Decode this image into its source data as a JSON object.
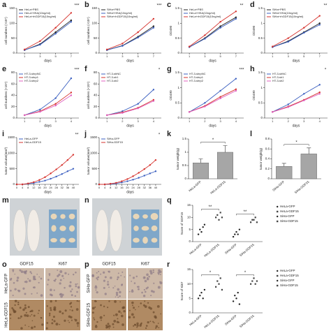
{
  "chart_data": [
    {
      "panel": "a",
      "type": "line",
      "xlabel": "days",
      "ylabel": "cell numbers (×10⁴)",
      "x": [
        1,
        3,
        5,
        7
      ],
      "xlim": [
        0,
        8
      ],
      "xticks": [
        1,
        3,
        5,
        7
      ],
      "ylim": [
        0,
        150
      ],
      "yticks": [
        0,
        50,
        100,
        150
      ],
      "annotation": "***",
      "series": [
        {
          "name": "HeLa+PBS",
          "color": "#222222",
          "values": [
            10,
            30,
            70,
            110
          ]
        },
        {
          "name": "HeLa+HSA(10ng/ml)",
          "color": "#3b5fc0",
          "values": [
            10,
            28,
            65,
            105
          ]
        },
        {
          "name": "HeLa+rhGDF15(10ng/ml)",
          "color": "#d6322d",
          "values": [
            12,
            40,
            85,
            135
          ]
        }
      ]
    },
    {
      "panel": "b",
      "type": "line",
      "xlabel": "days",
      "ylabel": "cell numbers (×10⁴)",
      "x": [
        1,
        3,
        5,
        7
      ],
      "xlim": [
        0,
        8
      ],
      "xticks": [
        1,
        3,
        5,
        7
      ],
      "ylim": [
        0,
        150
      ],
      "yticks": [
        0,
        50,
        100,
        150
      ],
      "annotation": "***",
      "series": [
        {
          "name": "SiHa+PBS",
          "color": "#222222",
          "values": [
            10,
            25,
            55,
            90
          ]
        },
        {
          "name": "SiHa+HSA(10ng/ml)",
          "color": "#3b5fc0",
          "values": [
            10,
            24,
            52,
            85
          ]
        },
        {
          "name": "SiHa+rhGDF15(10ng/ml)",
          "color": "#d6322d",
          "values": [
            12,
            32,
            70,
            115
          ]
        }
      ]
    },
    {
      "panel": "c",
      "type": "line",
      "xlabel": "days",
      "ylabel": "OD490",
      "x": [
        1,
        3,
        5,
        7
      ],
      "xlim": [
        0,
        8
      ],
      "xticks": [
        1,
        3,
        5,
        7
      ],
      "ylim": [
        0,
        1.5
      ],
      "yticks": [
        0,
        0.5,
        1,
        1.5
      ],
      "annotation": "**",
      "series": [
        {
          "name": "HeLa+PBS",
          "color": "#222222",
          "values": [
            0.2,
            0.5,
            0.9,
            1.2
          ]
        },
        {
          "name": "HeLa+HSA(10ng/ml)",
          "color": "#3b5fc0",
          "values": [
            0.2,
            0.48,
            0.85,
            1.15
          ]
        },
        {
          "name": "HeLa+rhGDF15(10ng/ml)",
          "color": "#d6322d",
          "values": [
            0.22,
            0.6,
            1.05,
            1.4
          ]
        }
      ]
    },
    {
      "panel": "d",
      "type": "line",
      "xlabel": "days",
      "ylabel": "OD490",
      "x": [
        1,
        3,
        5,
        7
      ],
      "xlim": [
        0,
        8
      ],
      "xticks": [
        1,
        3,
        5,
        7
      ],
      "ylim": [
        0,
        1.5
      ],
      "yticks": [
        0,
        0.5,
        1,
        1.5
      ],
      "annotation": "**",
      "series": [
        {
          "name": "SiHa+PBS",
          "color": "#222222",
          "values": [
            0.2,
            0.4,
            0.7,
            1.0
          ]
        },
        {
          "name": "SiHa+HSA(10ng/ml)",
          "color": "#3b5fc0",
          "values": [
            0.2,
            0.38,
            0.68,
            0.95
          ]
        },
        {
          "name": "SiHa+rhGDF15(10ng/ml)",
          "color": "#d6322d",
          "values": [
            0.22,
            0.5,
            0.85,
            1.25
          ]
        }
      ]
    },
    {
      "panel": "e",
      "type": "line",
      "xlabel": "days",
      "ylabel": "cell numbers (×10⁴)",
      "x": [
        1,
        2,
        3,
        4
      ],
      "xlim": [
        0.5,
        4.5
      ],
      "xticks": [
        1,
        2,
        3,
        4
      ],
      "ylim": [
        0,
        80
      ],
      "yticks": [
        0,
        20,
        40,
        60,
        80
      ],
      "annotation": "***",
      "series": [
        {
          "name": "HT-3-shrpNC",
          "color": "#3b5fc0",
          "values": [
            5,
            15,
            35,
            70
          ]
        },
        {
          "name": "HT-3-shrp1",
          "color": "#d6322d",
          "values": [
            5,
            12,
            25,
            45
          ]
        },
        {
          "name": "HT-3-shrp2",
          "color": "#e060c0",
          "values": [
            5,
            11,
            22,
            40
          ]
        }
      ]
    },
    {
      "panel": "f",
      "type": "line",
      "xlabel": "days",
      "ylabel": "cell numbers (×10⁴)",
      "x": [
        1,
        2,
        3,
        4
      ],
      "xlim": [
        0.5,
        4.5
      ],
      "xticks": [
        1,
        2,
        3,
        4
      ],
      "ylim": [
        0,
        80
      ],
      "yticks": [
        0,
        20,
        40,
        60,
        80
      ],
      "annotation": "*",
      "series": [
        {
          "name": "HT-3-shNC",
          "color": "#3b5fc0",
          "values": [
            5,
            12,
            25,
            50
          ]
        },
        {
          "name": "HT-3-sh1",
          "color": "#d6322d",
          "values": [
            5,
            10,
            18,
            32
          ]
        },
        {
          "name": "HT-3-sh2",
          "color": "#e060c0",
          "values": [
            5,
            9,
            17,
            30
          ]
        }
      ]
    },
    {
      "panel": "g",
      "type": "line",
      "xlabel": "days",
      "ylabel": "OD490",
      "x": [
        1,
        2,
        3,
        4
      ],
      "xlim": [
        0.5,
        4.5
      ],
      "xticks": [
        1,
        2,
        3,
        4
      ],
      "ylim": [
        0,
        1.5
      ],
      "yticks": [
        0,
        0.5,
        1,
        1.5
      ],
      "annotation": "***",
      "series": [
        {
          "name": "HT-3-shrpNC",
          "color": "#3b5fc0",
          "values": [
            0.2,
            0.5,
            0.9,
            1.3
          ]
        },
        {
          "name": "HT-3-shrp1",
          "color": "#d6322d",
          "values": [
            0.2,
            0.4,
            0.7,
            0.95
          ]
        },
        {
          "name": "HT-3-shrp2",
          "color": "#e060c0",
          "values": [
            0.2,
            0.38,
            0.65,
            0.9
          ]
        }
      ]
    },
    {
      "panel": "h",
      "type": "line",
      "xlabel": "days",
      "ylabel": "OD490",
      "x": [
        1,
        2,
        3,
        4
      ],
      "xlim": [
        0.5,
        4.5
      ],
      "xticks": [
        1,
        2,
        3,
        4
      ],
      "ylim": [
        0,
        1.5
      ],
      "yticks": [
        0,
        0.5,
        1,
        1.5
      ],
      "annotation": "*",
      "series": [
        {
          "name": "HT-3-shNC",
          "color": "#3b5fc0",
          "values": [
            0.2,
            0.45,
            0.8,
            1.1
          ]
        },
        {
          "name": "HT-3-sh1",
          "color": "#d6322d",
          "values": [
            0.2,
            0.38,
            0.6,
            0.85
          ]
        },
        {
          "name": "HT-3-sh2",
          "color": "#e060c0",
          "values": [
            0.2,
            0.36,
            0.58,
            0.8
          ]
        }
      ]
    },
    {
      "panel": "i",
      "type": "line",
      "xlabel": "days",
      "ylabel": "tumor volume(mm³)",
      "x": [
        0,
        4,
        8,
        12,
        16,
        20,
        24,
        28,
        32,
        36,
        40
      ],
      "xlim": [
        0,
        44
      ],
      "xticks": [
        0,
        4,
        8,
        12,
        16,
        20,
        24,
        28,
        32,
        36,
        40
      ],
      "ylim": [
        0,
        1500
      ],
      "yticks": [
        0,
        500,
        1000,
        1500
      ],
      "annotation": "**",
      "series": [
        {
          "name": "HeLa-GFP",
          "color": "#3b5fc0",
          "values": [
            0,
            0,
            20,
            40,
            80,
            120,
            180,
            250,
            330,
            420,
            500
          ]
        },
        {
          "name": "HeLa-GDF15",
          "color": "#d6322d",
          "values": [
            0,
            0,
            30,
            70,
            140,
            230,
            350,
            480,
            620,
            780,
            950
          ]
        }
      ]
    },
    {
      "panel": "j",
      "type": "line",
      "xlabel": "days",
      "ylabel": "tumor volume(mm³)",
      "x": [
        0,
        4,
        8,
        12,
        16,
        20,
        24,
        28,
        32,
        36,
        40
      ],
      "xlim": [
        0,
        44
      ],
      "xticks": [
        0,
        4,
        8,
        12,
        16,
        20,
        24,
        28,
        32,
        36,
        40
      ],
      "ylim": [
        0,
        1500
      ],
      "yticks": [
        0,
        500,
        1000,
        1500
      ],
      "annotation": "*",
      "series": [
        {
          "name": "SiHa-GFP",
          "color": "#3b5fc0",
          "values": [
            0,
            0,
            10,
            30,
            60,
            100,
            150,
            210,
            280,
            350,
            420
          ]
        },
        {
          "name": "SiHa-GDF15",
          "color": "#d6322d",
          "values": [
            0,
            0,
            20,
            50,
            100,
            170,
            260,
            370,
            490,
            620,
            780
          ]
        }
      ]
    },
    {
      "panel": "k",
      "type": "bar",
      "ylabel": "tumor weight(g)",
      "categories": [
        "HeLa-GFP",
        "HeLa-GDF15"
      ],
      "values": [
        0.6,
        1.0
      ],
      "errors": [
        0.15,
        0.25
      ],
      "color": "#a6a6a6",
      "ylim": [
        0,
        1.5
      ],
      "yticks": [
        0,
        0.5,
        1,
        1.5
      ],
      "annotation": "*"
    },
    {
      "panel": "l",
      "type": "bar",
      "ylabel": "tumor weight(g)",
      "categories": [
        "SiHa-GFP",
        "SiHa-GDF15"
      ],
      "values": [
        0.25,
        0.5
      ],
      "errors": [
        0.06,
        0.12
      ],
      "color": "#a6a6a6",
      "ylim": [
        0,
        0.8
      ],
      "yticks": [
        0,
        0.2,
        0.4,
        0.6,
        0.8
      ],
      "annotation": "*"
    },
    {
      "panel": "q",
      "type": "strip",
      "ylabel": "Score of GDF15",
      "ylim": [
        0,
        15
      ],
      "yticks": [
        0,
        5,
        10,
        15
      ],
      "annotations": [
        "**",
        "**"
      ],
      "series": [
        {
          "name": "HeLa-GFP",
          "color": "#222222",
          "values": [
            3,
            5,
            4,
            6,
            7
          ]
        },
        {
          "name": "HeLa-GDF15",
          "color": "#444444",
          "values": [
            10,
            11,
            9,
            12,
            10
          ]
        },
        {
          "name": "SiHa-GFP",
          "color": "#222222",
          "values": [
            2,
            3,
            4,
            3,
            5
          ]
        },
        {
          "name": "SiHa-GDF15",
          "color": "#444444",
          "values": [
            8,
            9,
            9,
            10,
            8
          ]
        }
      ]
    },
    {
      "panel": "r",
      "type": "strip",
      "ylabel": "Score of Ki67",
      "ylim": [
        0,
        15
      ],
      "yticks": [
        0,
        5,
        10,
        15
      ],
      "annotations": [
        "*",
        "*"
      ],
      "series": [
        {
          "name": "HeLa-GFP",
          "color": "#222222",
          "values": [
            5,
            6,
            7,
            5,
            8
          ]
        },
        {
          "name": "HeLa-GDF15",
          "color": "#444444",
          "values": [
            9,
            11,
            10,
            12,
            8
          ]
        },
        {
          "name": "SiHa-GFP",
          "color": "#222222",
          "values": [
            4,
            6,
            5,
            7,
            3
          ]
        },
        {
          "name": "SiHa-GDF15",
          "color": "#444444",
          "values": [
            10,
            11,
            12,
            10,
            11
          ]
        }
      ]
    }
  ],
  "figures": [
    {
      "panel": "m"
    },
    {
      "panel": "n"
    },
    {
      "panel": "o",
      "columns": [
        "GDF15",
        "Ki67"
      ],
      "rows": [
        "HeLa-GFP",
        "HeLa-GDF15"
      ]
    },
    {
      "panel": "p",
      "columns": [
        "GDF15",
        "Ki67"
      ],
      "rows": [
        "SiHa-GFP",
        "SiHa-GDF15"
      ]
    }
  ]
}
